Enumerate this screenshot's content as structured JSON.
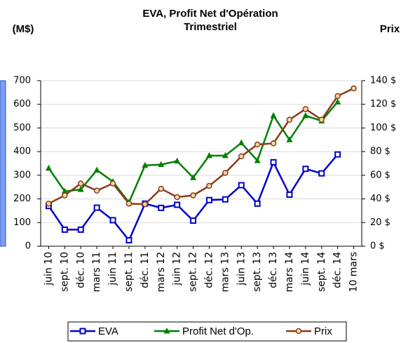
{
  "chart_data": {
    "type": "line",
    "title": "EVA, Profit Net d'Opération Trimestriel",
    "ylabel": "(M$)",
    "y2label": "Prix",
    "categories": [
      "juin 10",
      "sept. 10",
      "déc. 10",
      "mars 11",
      "juin 11",
      "sept. 11",
      "déc. 11",
      "mars 12",
      "juin 12",
      "sept. 12",
      "déc. 12",
      "mars 13",
      "juin 13",
      "sept. 13",
      "déc. 13",
      "mars 14",
      "juin 14",
      "sept. 14",
      "déc. 14",
      "10 mars"
    ],
    "series": [
      {
        "name": "EVA",
        "color": "#0000cc",
        "marker": "square",
        "values": [
          170,
          70,
          70,
          163,
          110,
          25,
          180,
          162,
          175,
          108,
          195,
          198,
          258,
          180,
          355,
          218,
          327,
          308,
          388,
          null
        ]
      },
      {
        "name": "Profit Net d'Op.",
        "color": "#008000",
        "marker": "triangle",
        "values": [
          330,
          232,
          240,
          322,
          273,
          185,
          342,
          345,
          360,
          290,
          383,
          383,
          437,
          362,
          552,
          450,
          552,
          530,
          610,
          null
        ]
      },
      {
        "name": "Prix",
        "color": "#8b3a1a",
        "marker": "circle",
        "axis": "y2",
        "values": [
          36,
          43,
          53,
          47,
          53,
          36,
          35.5,
          48.6,
          41.5,
          43,
          51,
          62,
          76,
          86,
          87,
          107,
          116,
          107,
          127,
          133.5
        ]
      }
    ],
    "ylim": [
      0,
      700
    ],
    "yticks": [
      0,
      100,
      200,
      300,
      400,
      500,
      600,
      700
    ],
    "y2lim": [
      0,
      140
    ],
    "y2ticks": [
      {
        "value": 0,
        "label": "0 $"
      },
      {
        "value": 20,
        "label": "20 $"
      },
      {
        "value": 40,
        "label": "40 $"
      },
      {
        "value": 60,
        "label": "60 $"
      },
      {
        "value": 80,
        "label": "80 $"
      },
      {
        "value": 100,
        "label": "100 $"
      },
      {
        "value": 120,
        "label": "120 $"
      },
      {
        "value": 140,
        "label": "140 $"
      }
    ],
    "grid": true,
    "legend": "bottom"
  }
}
